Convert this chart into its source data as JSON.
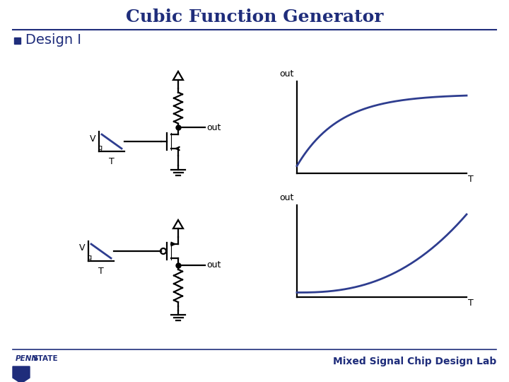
{
  "title": "Cubic Function Generator",
  "subtitle": "Design I",
  "bg_color": "#ffffff",
  "title_color": "#1f2d7b",
  "line_color": "#000000",
  "curve_color": "#2e3d8f",
  "vg_color": "#2e3d8f",
  "footer_text": "Mixed Signal Chip Design Lab",
  "title_fontsize": 18,
  "subtitle_fontsize": 14,
  "footer_fontsize": 10,
  "lw": 1.6
}
